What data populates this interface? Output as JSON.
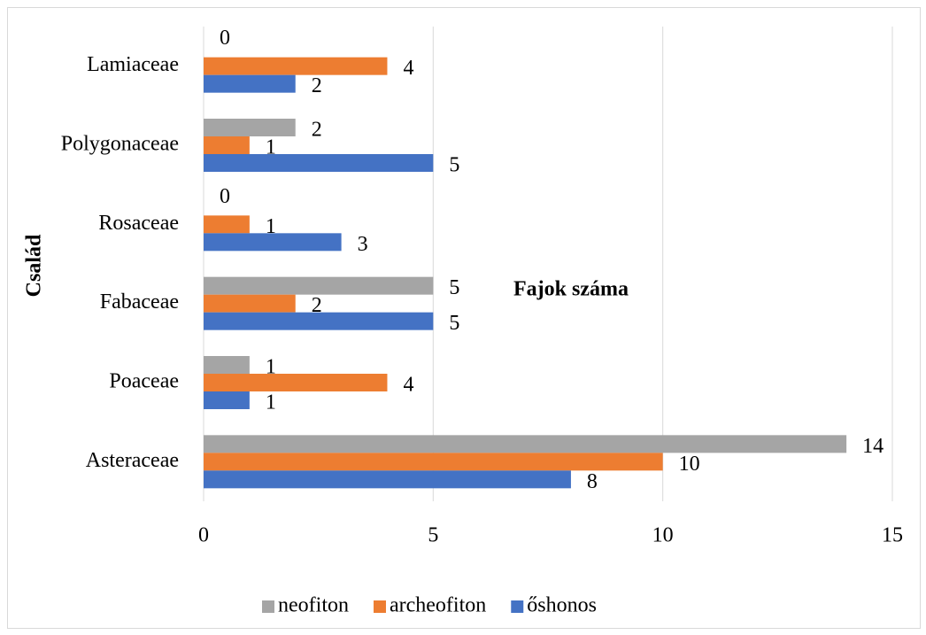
{
  "chart_data": {
    "type": "bar",
    "orientation": "horizontal",
    "x_label": "Fajok száma",
    "y_label": "Család",
    "categories": [
      "Asteraceae",
      "Poaceae",
      "Fabaceae",
      "Rosaceae",
      "Polygonaceae",
      "Lamiaceae"
    ],
    "series": [
      {
        "name": "neofiton",
        "color": "#a5a5a5",
        "values": [
          14,
          1,
          5,
          0,
          2,
          0
        ]
      },
      {
        "name": "archeofiton",
        "color": "#ed7d31",
        "values": [
          10,
          4,
          2,
          1,
          1,
          4
        ]
      },
      {
        "name": "őshonos",
        "color": "#4472c4",
        "values": [
          8,
          1,
          5,
          3,
          5,
          2
        ]
      }
    ],
    "xlim": [
      0,
      15
    ],
    "xticks": [
      0,
      5,
      10,
      15
    ],
    "grid": true,
    "legend": "bottom"
  }
}
